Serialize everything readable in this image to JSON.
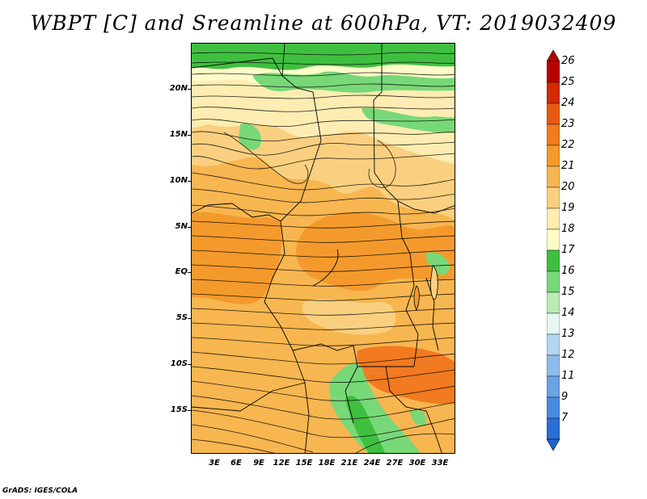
{
  "title": "WBPT [C] and Sreamline at 600hPa, VT: 2019032409",
  "credit": "GrADS: IGES/COLA",
  "map": {
    "lat_labels": [
      "20N",
      "15N",
      "10N",
      "5N",
      "EQ",
      "5S",
      "10S",
      "15S"
    ],
    "lon_labels": [
      "3E",
      "6E",
      "9E",
      "12E",
      "15E",
      "18E",
      "21E",
      "24E",
      "27E",
      "30E",
      "33E"
    ],
    "field": "WBPT",
    "overlay": "streamlines",
    "prevailing_flow": "easterly"
  },
  "colorbar": {
    "labels": [
      "26",
      "25",
      "24",
      "23",
      "22",
      "21",
      "20",
      "19",
      "18",
      "17",
      "16",
      "15",
      "14",
      "13",
      "12",
      "11",
      "9",
      "7"
    ],
    "colors": [
      "#b80000",
      "#d42a00",
      "#e85a12",
      "#f27a20",
      "#f49a2c",
      "#f7b650",
      "#fad080",
      "#fdedb2",
      "#fdfcc8",
      "#3fbf3f",
      "#78d878",
      "#b8ecb4",
      "#e6f7f2",
      "#b4d6f2",
      "#8cbcec",
      "#6aa4e6",
      "#4a8ade",
      "#2a6ed6"
    ],
    "top_color": "#b80000",
    "bottom_color": "#1e64d2"
  }
}
